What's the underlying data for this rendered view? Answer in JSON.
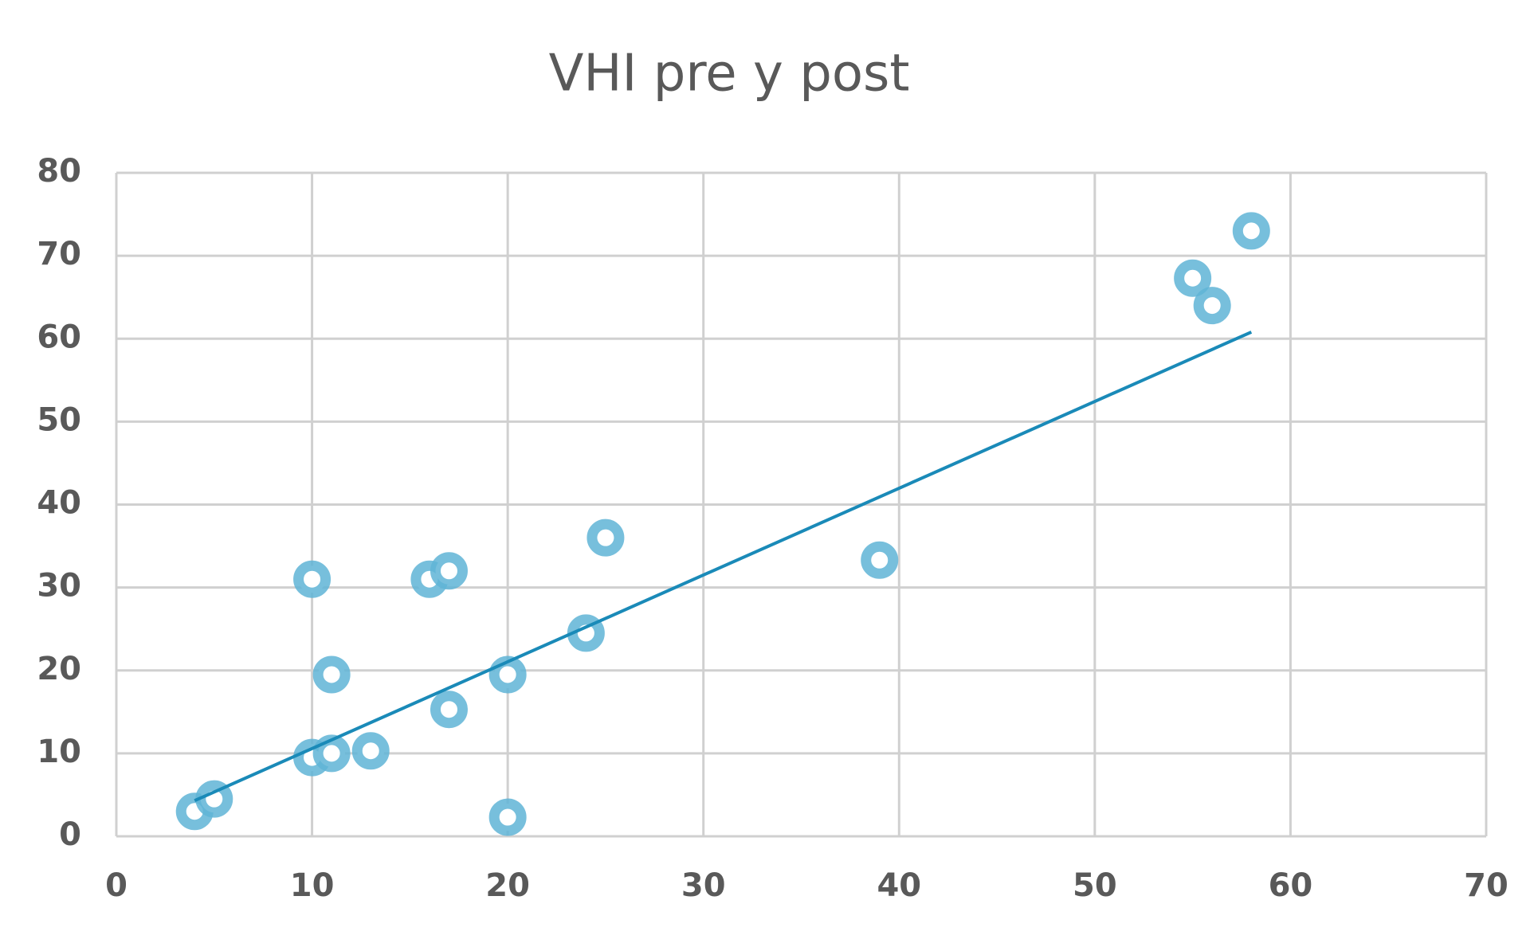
{
  "chart_data": {
    "type": "scatter",
    "title": "VHI pre y post",
    "x": [
      4,
      5,
      10,
      10,
      11,
      11,
      13,
      16,
      17,
      17,
      20,
      20,
      24,
      25,
      39,
      55,
      56,
      58
    ],
    "values": [
      3,
      4.5,
      31,
      9.5,
      10,
      19.5,
      10.3,
      31,
      32,
      15.3,
      19.5,
      2.3,
      24.5,
      36,
      33.3,
      67.3,
      64,
      73
    ],
    "color": "#5fb4d6",
    "trendline": {
      "x": [
        4,
        58
      ],
      "values": [
        4.3,
        60.8
      ],
      "color": "#1a8ab8"
    },
    "xlim": [
      0,
      70
    ],
    "xticks": [
      0,
      10,
      20,
      30,
      40,
      50,
      60,
      70
    ],
    "ylim": [
      0,
      80
    ],
    "yticks": [
      0,
      10,
      20,
      30,
      40,
      50,
      60,
      70,
      80
    ],
    "grid": true
  }
}
